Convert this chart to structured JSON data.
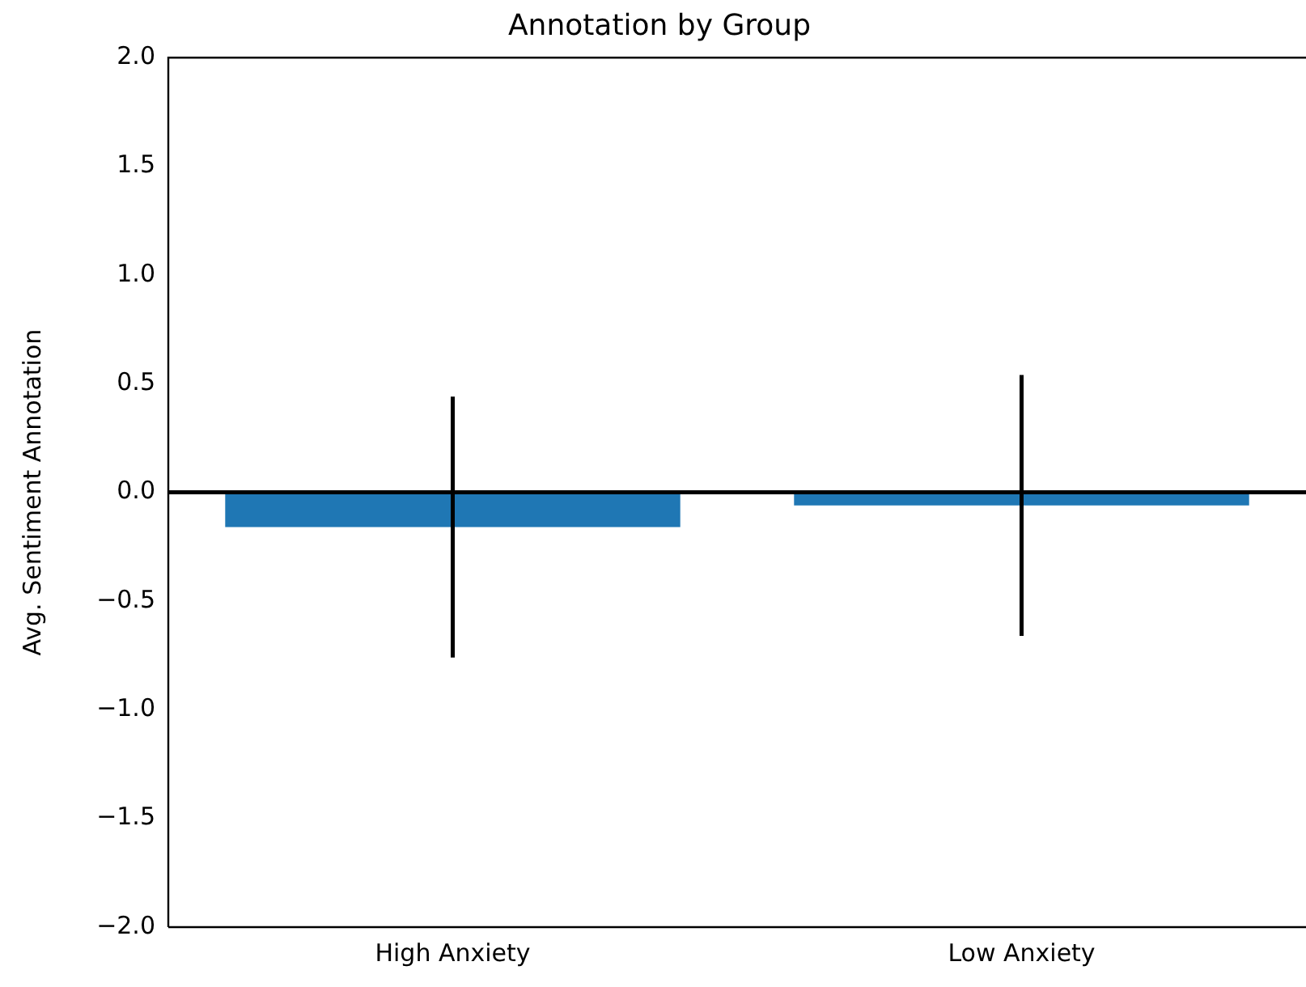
{
  "chart_data": {
    "type": "bar",
    "title": "Annotation by Group",
    "ylabel": "Avg. Sentiment Annotation",
    "categories": [
      "High Anxiety",
      "Low Anxiety"
    ],
    "values": [
      -0.16,
      -0.06
    ],
    "errors": [
      0.6,
      0.6
    ],
    "color": "#1f77b4",
    "ylim": [
      -2,
      2
    ],
    "yticks": [
      {
        "value": -2,
        "label": "−2.0"
      },
      {
        "value": -1.5,
        "label": "−1.5"
      },
      {
        "value": -1,
        "label": "−1.0"
      },
      {
        "value": -0.5,
        "label": "−0.5"
      },
      {
        "value": 0,
        "label": "0.0"
      },
      {
        "value": 0.5,
        "label": "0.5"
      },
      {
        "value": 1,
        "label": "1.0"
      },
      {
        "value": 1.5,
        "label": "1.5"
      },
      {
        "value": 2,
        "label": "2.0"
      }
    ],
    "ref_lines": [
      {
        "axis": "y",
        "value": 0,
        "color": "#000000"
      }
    ],
    "grid": false,
    "legend": false
  }
}
